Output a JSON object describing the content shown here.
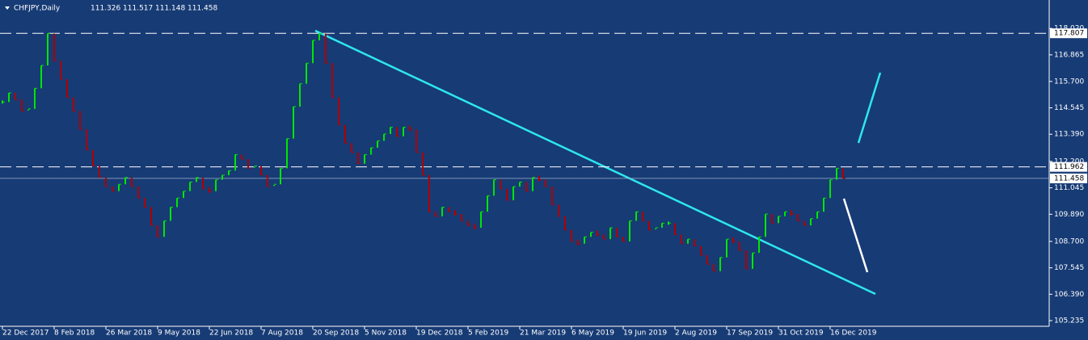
{
  "chart_data": {
    "type": "ohlc-close",
    "symbol": "CHFJPY,Daily",
    "header_values": [
      111.326,
      111.517,
      111.148,
      111.458
    ],
    "categories": [
      "22 Dec 2017",
      null,
      null,
      null,
      null,
      null,
      null,
      null,
      "8 Feb 2018",
      null,
      null,
      null,
      null,
      null,
      null,
      null,
      "26 Mar 2018",
      null,
      null,
      null,
      null,
      null,
      null,
      null,
      "9 May 2018",
      null,
      null,
      null,
      null,
      null,
      null,
      null,
      "22 Jun 2018",
      null,
      null,
      null,
      null,
      null,
      null,
      null,
      "7 Aug 2018",
      null,
      null,
      null,
      null,
      null,
      null,
      null,
      "20 Sep 2018",
      null,
      null,
      null,
      null,
      null,
      null,
      null,
      "5 Nov 2018",
      null,
      null,
      null,
      null,
      null,
      null,
      null,
      "19 Dec 2018",
      null,
      null,
      null,
      null,
      null,
      null,
      null,
      "5 Feb 2019",
      null,
      null,
      null,
      null,
      null,
      null,
      null,
      "21 Mar 2019",
      null,
      null,
      null,
      null,
      null,
      null,
      null,
      "6 May 2019",
      null,
      null,
      null,
      null,
      null,
      null,
      null,
      "19 Jun 2019",
      null,
      null,
      null,
      null,
      null,
      null,
      null,
      "2 Aug 2019",
      null,
      null,
      null,
      null,
      null,
      null,
      null,
      "17 Sep 2019",
      null,
      null,
      null,
      null,
      null,
      null,
      null,
      "31 Oct 2019",
      null,
      null,
      null,
      null,
      null,
      null,
      null,
      "16 Dec 2019",
      null,
      null
    ],
    "values": [
      114.8,
      115.2,
      114.9,
      114.4,
      114.5,
      115.4,
      116.4,
      117.8,
      116.6,
      115.8,
      115.0,
      114.4,
      113.6,
      112.7,
      112.0,
      111.5,
      111.1,
      110.9,
      111.2,
      111.5,
      111.1,
      110.6,
      110.2,
      109.4,
      108.9,
      109.6,
      110.2,
      110.6,
      110.9,
      111.3,
      111.5,
      111.0,
      110.9,
      111.4,
      111.6,
      111.8,
      112.5,
      112.3,
      111.9,
      112.0,
      111.6,
      111.1,
      111.2,
      111.9,
      113.2,
      114.6,
      115.6,
      116.5,
      117.5,
      117.8,
      116.5,
      115.0,
      113.8,
      113.0,
      112.6,
      112.1,
      112.5,
      112.8,
      113.1,
      113.4,
      113.7,
      113.3,
      113.7,
      113.6,
      112.6,
      111.6,
      110.0,
      109.8,
      110.2,
      110.0,
      109.9,
      109.6,
      109.4,
      109.3,
      110.0,
      110.7,
      111.4,
      111.0,
      110.5,
      111.1,
      111.3,
      110.9,
      111.5,
      111.4,
      111.1,
      110.3,
      109.8,
      109.2,
      108.7,
      108.6,
      108.9,
      109.1,
      109.0,
      108.8,
      109.3,
      108.9,
      108.7,
      109.6,
      110.0,
      109.6,
      109.2,
      109.3,
      109.5,
      109.5,
      109.0,
      108.6,
      108.8,
      108.5,
      108.1,
      107.7,
      107.4,
      108.0,
      108.8,
      108.7,
      108.3,
      107.5,
      108.2,
      108.9,
      109.9,
      109.5,
      109.8,
      110.0,
      109.9,
      109.6,
      109.4,
      109.7,
      110.0,
      110.6,
      111.4,
      111.9,
      111.458
    ],
    "up_color": "#00e600",
    "down_color": "#b00000",
    "ylim": [
      104.882,
      119.264
    ],
    "yticks": [
      {
        "value": 118.02,
        "label": "118.020"
      },
      116.865,
      {
        "value": 115.7,
        "label": "115.700"
      },
      114.545,
      {
        "value": 113.39,
        "label": "113.390"
      },
      {
        "value": 112.2,
        "label": "112.200"
      },
      111.045,
      {
        "value": 109.89,
        "label": "109.890"
      },
      {
        "value": 108.7,
        "label": "108.700"
      },
      107.545,
      {
        "value": 106.39,
        "label": "106.390"
      },
      105.235
    ],
    "levels": [
      117.807,
      111.962
    ],
    "current_price": 111.458,
    "background": "#173b75"
  }
}
